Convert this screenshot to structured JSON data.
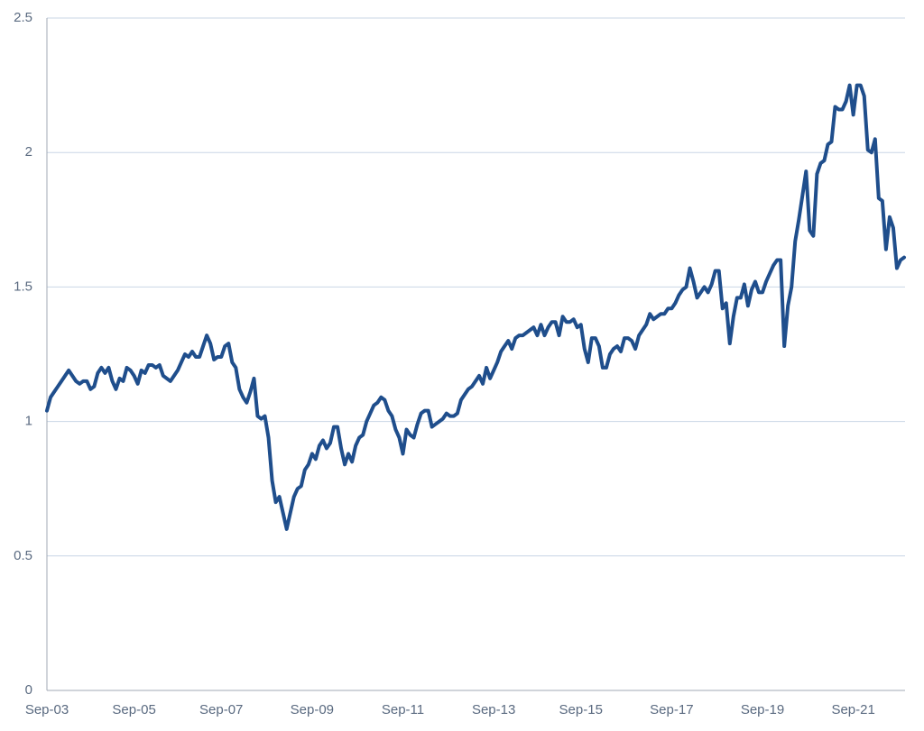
{
  "chart_data": {
    "type": "line",
    "categories": [
      "Sep-03",
      null,
      null,
      null,
      null,
      null,
      null,
      null,
      null,
      null,
      null,
      null,
      null,
      null,
      null,
      null,
      null,
      null,
      null,
      null,
      null,
      null,
      null,
      null,
      "Sep-05",
      null,
      null,
      null,
      null,
      null,
      null,
      null,
      null,
      null,
      null,
      null,
      null,
      null,
      null,
      null,
      null,
      null,
      null,
      null,
      null,
      null,
      null,
      null,
      "Sep-07",
      null,
      null,
      null,
      null,
      null,
      null,
      null,
      null,
      null,
      null,
      null,
      null,
      null,
      null,
      null,
      null,
      null,
      null,
      null,
      null,
      null,
      null,
      null,
      null,
      "Sep-09",
      null,
      null,
      null,
      null,
      null,
      null,
      null,
      null,
      null,
      null,
      null,
      null,
      null,
      null,
      null,
      null,
      null,
      null,
      null,
      null,
      null,
      null,
      null,
      null,
      "Sep-11",
      null,
      null,
      null,
      null,
      null,
      null,
      null,
      null,
      null,
      null,
      null,
      null,
      null,
      null,
      null,
      null,
      null,
      null,
      null,
      null,
      null,
      null,
      null,
      null,
      "Sep-13",
      null,
      null,
      null,
      null,
      null,
      null,
      null,
      null,
      null,
      null,
      null,
      null,
      null,
      null,
      null,
      null,
      null,
      null,
      null,
      null,
      null,
      null,
      null,
      "Sep-15",
      null,
      null,
      null,
      null,
      null,
      null,
      null,
      null,
      null,
      null,
      null,
      null,
      null,
      null,
      null,
      null,
      null,
      null,
      null,
      null,
      null,
      null,
      null,
      null,
      "Sep-17",
      null,
      null,
      null,
      null,
      null,
      null,
      null,
      null,
      null,
      null,
      null,
      null,
      null,
      null,
      null,
      null,
      null,
      null,
      null,
      null,
      null,
      null,
      null,
      null,
      "Sep-19",
      null,
      null,
      null,
      null,
      null,
      null,
      null,
      null,
      null,
      null,
      null,
      null,
      null,
      null,
      null,
      null,
      null,
      null,
      null,
      null,
      null,
      null,
      null,
      null,
      "Sep-21",
      null,
      null,
      null,
      null,
      null,
      null,
      null,
      null,
      null,
      null,
      null,
      null,
      null,
      null
    ],
    "values": [
      1.04,
      1.09,
      1.11,
      1.13,
      1.15,
      1.17,
      1.19,
      1.17,
      1.15,
      1.14,
      1.15,
      1.15,
      1.12,
      1.13,
      1.18,
      1.2,
      1.18,
      1.2,
      1.15,
      1.12,
      1.16,
      1.15,
      1.2,
      1.19,
      1.17,
      1.14,
      1.19,
      1.18,
      1.21,
      1.21,
      1.2,
      1.21,
      1.17,
      1.16,
      1.15,
      1.17,
      1.19,
      1.22,
      1.25,
      1.24,
      1.26,
      1.24,
      1.24,
      1.28,
      1.32,
      1.29,
      1.23,
      1.24,
      1.24,
      1.28,
      1.29,
      1.22,
      1.2,
      1.12,
      1.09,
      1.07,
      1.11,
      1.16,
      1.02,
      1.01,
      1.02,
      0.94,
      0.78,
      0.7,
      0.72,
      0.66,
      0.6,
      0.66,
      0.72,
      0.75,
      0.76,
      0.82,
      0.84,
      0.88,
      0.86,
      0.91,
      0.93,
      0.9,
      0.92,
      0.98,
      0.98,
      0.9,
      0.84,
      0.88,
      0.85,
      0.91,
      0.94,
      0.95,
      1.0,
      1.03,
      1.06,
      1.07,
      1.09,
      1.08,
      1.04,
      1.02,
      0.97,
      0.94,
      0.88,
      0.97,
      0.95,
      0.94,
      0.99,
      1.03,
      1.04,
      1.04,
      0.98,
      0.99,
      1.0,
      1.01,
      1.03,
      1.02,
      1.02,
      1.03,
      1.08,
      1.1,
      1.12,
      1.13,
      1.15,
      1.17,
      1.14,
      1.2,
      1.16,
      1.19,
      1.22,
      1.26,
      1.28,
      1.3,
      1.27,
      1.31,
      1.32,
      1.32,
      1.33,
      1.34,
      1.35,
      1.32,
      1.36,
      1.32,
      1.35,
      1.37,
      1.37,
      1.32,
      1.39,
      1.37,
      1.37,
      1.38,
      1.35,
      1.36,
      1.27,
      1.22,
      1.31,
      1.31,
      1.28,
      1.2,
      1.2,
      1.25,
      1.27,
      1.28,
      1.26,
      1.31,
      1.31,
      1.3,
      1.27,
      1.32,
      1.34,
      1.36,
      1.4,
      1.38,
      1.39,
      1.4,
      1.4,
      1.42,
      1.42,
      1.44,
      1.47,
      1.49,
      1.5,
      1.57,
      1.52,
      1.46,
      1.48,
      1.5,
      1.48,
      1.51,
      1.56,
      1.56,
      1.42,
      1.44,
      1.29,
      1.39,
      1.46,
      1.46,
      1.51,
      1.43,
      1.49,
      1.52,
      1.48,
      1.48,
      1.52,
      1.55,
      1.58,
      1.6,
      1.6,
      1.28,
      1.43,
      1.5,
      1.67,
      1.75,
      1.84,
      1.93,
      1.71,
      1.69,
      1.92,
      1.96,
      1.97,
      2.03,
      2.04,
      2.17,
      2.16,
      2.16,
      2.19,
      2.25,
      2.14,
      2.25,
      2.25,
      2.21,
      2.01,
      2.0,
      2.05,
      1.83,
      1.82,
      1.64,
      1.76,
      1.72,
      1.57,
      1.6,
      1.61
    ],
    "color": "#1f4e8c",
    "ylim": [
      0,
      2.5
    ],
    "yticks": [
      0,
      0.5,
      1,
      1.5,
      2,
      2.5
    ],
    "grid": true
  }
}
